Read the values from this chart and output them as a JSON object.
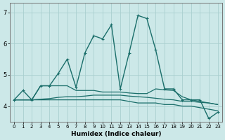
{
  "xlabel": "Humidex (Indice chaleur)",
  "bg_color": "#cce8e8",
  "grid_color": "#aacfcf",
  "line_color": "#1a6e6a",
  "xlim": [
    -0.5,
    23.5
  ],
  "ylim": [
    3.5,
    7.3
  ],
  "yticks": [
    4,
    5,
    6,
    7
  ],
  "xticks": [
    0,
    1,
    2,
    3,
    4,
    5,
    6,
    7,
    8,
    9,
    10,
    11,
    12,
    13,
    14,
    15,
    16,
    17,
    18,
    19,
    20,
    21,
    22,
    23
  ],
  "lines": [
    {
      "x": [
        0,
        1,
        2,
        3,
        4,
        5,
        6,
        7,
        8,
        9,
        10,
        11,
        12,
        13,
        14,
        15,
        16,
        17,
        18,
        19,
        20,
        21,
        22,
        23
      ],
      "y": [
        4.2,
        4.2,
        4.2,
        4.2,
        4.2,
        4.2,
        4.2,
        4.2,
        4.2,
        4.2,
        4.2,
        4.2,
        4.2,
        4.15,
        4.1,
        4.1,
        4.1,
        4.05,
        4.05,
        4.0,
        4.0,
        3.95,
        3.9,
        3.85
      ],
      "marker": null,
      "lw": 0.9
    },
    {
      "x": [
        0,
        1,
        2,
        3,
        4,
        5,
        6,
        7,
        8,
        9,
        10,
        11,
        12,
        13,
        14,
        15,
        16,
        17,
        18,
        19,
        20,
        21,
        22,
        23
      ],
      "y": [
        4.2,
        4.2,
        4.2,
        4.22,
        4.24,
        4.28,
        4.3,
        4.3,
        4.32,
        4.35,
        4.35,
        4.35,
        4.35,
        4.32,
        4.3,
        4.28,
        4.25,
        4.22,
        4.2,
        4.15,
        4.15,
        4.12,
        4.1,
        4.05
      ],
      "marker": null,
      "lw": 0.9
    },
    {
      "x": [
        0,
        1,
        2,
        3,
        4,
        5,
        6,
        7,
        8,
        9,
        10,
        11,
        12,
        13,
        14,
        15,
        16,
        17,
        18,
        19,
        20,
        21,
        22,
        23
      ],
      "y": [
        4.2,
        4.5,
        4.2,
        4.65,
        4.65,
        5.05,
        5.5,
        4.6,
        5.7,
        6.25,
        6.15,
        6.6,
        4.55,
        5.7,
        6.9,
        6.8,
        5.8,
        4.55,
        4.55,
        4.2,
        4.2,
        4.2,
        3.6,
        3.8
      ],
      "marker": "+",
      "lw": 1.0
    },
    {
      "x": [
        0,
        1,
        2,
        3,
        4,
        5,
        6,
        7,
        8,
        9,
        10,
        11,
        12,
        13,
        14,
        15,
        16,
        17,
        18,
        19,
        20,
        21,
        22,
        23
      ],
      "y": [
        4.2,
        4.2,
        4.2,
        4.65,
        4.65,
        4.65,
        4.65,
        4.5,
        4.5,
        4.5,
        4.45,
        4.45,
        4.45,
        4.42,
        4.4,
        4.4,
        4.55,
        4.52,
        4.5,
        4.3,
        4.2,
        4.15,
        4.1,
        4.05
      ],
      "marker": null,
      "lw": 0.9
    }
  ]
}
